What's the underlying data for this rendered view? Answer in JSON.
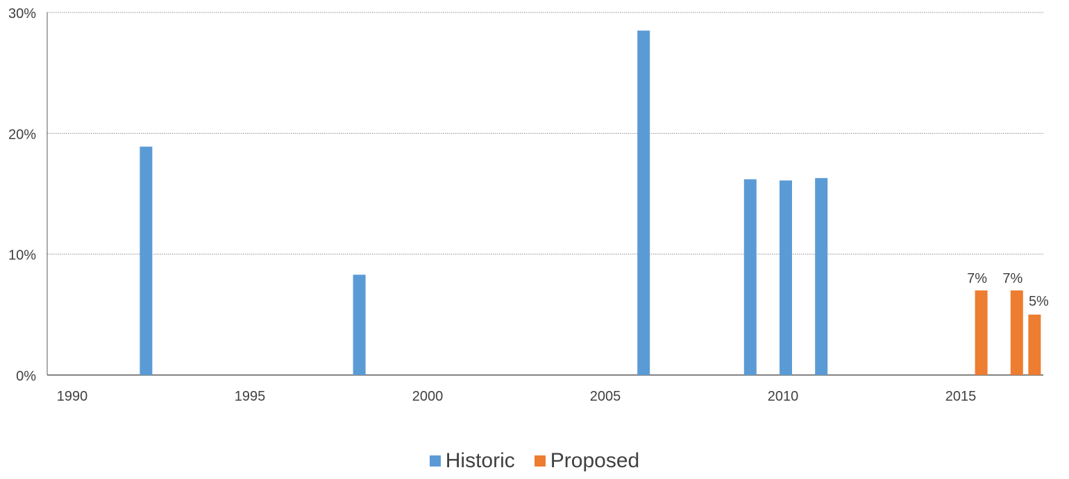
{
  "chart_data": {
    "type": "bar",
    "x_ticks": [
      "1990",
      "1995",
      "2000",
      "2005",
      "2010",
      "2015"
    ],
    "xlim": [
      1990,
      2017.3
    ],
    "y_ticks": [
      "0%",
      "10%",
      "20%",
      "30%"
    ],
    "ylim": [
      0,
      30
    ],
    "grid": true,
    "legend_position": "bottom",
    "series": [
      {
        "name": "Historic",
        "color": "#5b9bd5",
        "x": [
          1992,
          1998,
          2006,
          2009,
          2010,
          2011
        ],
        "values": [
          18.9,
          8.3,
          28.5,
          16.2,
          16.1,
          16.3
        ]
      },
      {
        "name": "Proposed",
        "color": "#ed7d31",
        "x": [
          2015.5,
          2016.5,
          2017
        ],
        "values": [
          7,
          7,
          5
        ],
        "labels": [
          "7%",
          "7%",
          "5%"
        ]
      }
    ]
  }
}
